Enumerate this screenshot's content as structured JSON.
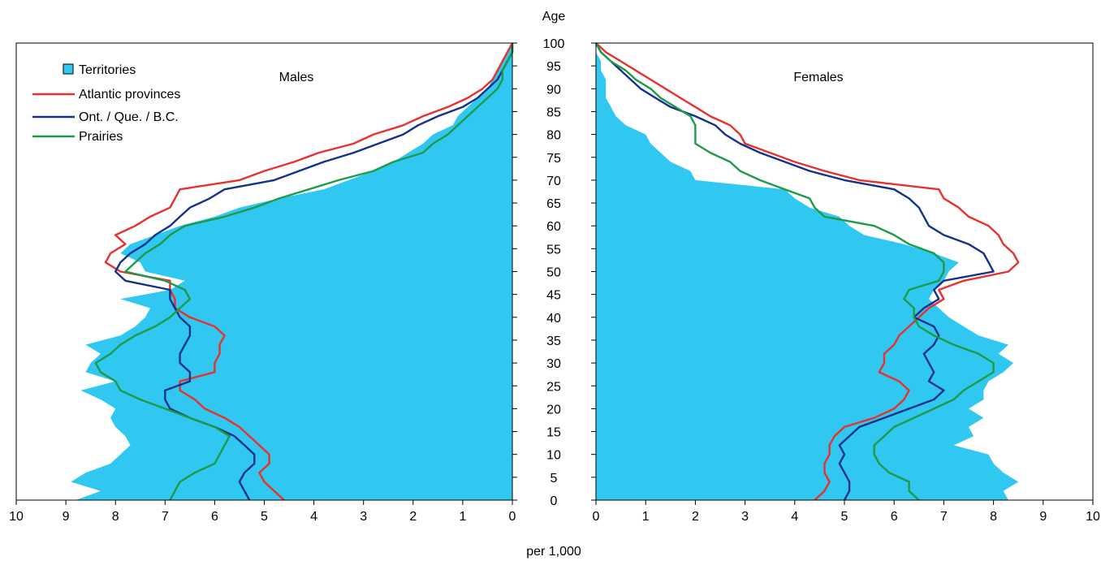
{
  "chart_data": {
    "type": "area",
    "subtype": "population-pyramid",
    "axis_title_age": "Age",
    "axis_title_x": "per 1,000",
    "panels": [
      {
        "side": "left",
        "label": "Males",
        "xlim": [
          0,
          10
        ]
      },
      {
        "side": "right",
        "label": "Females",
        "xlim": [
          0,
          10
        ]
      }
    ],
    "age_ticks": [
      0,
      5,
      10,
      15,
      20,
      25,
      30,
      35,
      40,
      45,
      50,
      55,
      60,
      65,
      70,
      75,
      80,
      85,
      90,
      95,
      100
    ],
    "x_ticks": [
      10,
      9,
      8,
      7,
      6,
      5,
      4,
      3,
      2,
      1,
      0
    ],
    "x_ticks_right": [
      0,
      1,
      2,
      3,
      4,
      5,
      6,
      7,
      8,
      9,
      10
    ],
    "ylim": [
      0,
      100
    ],
    "grid": false,
    "legend_position": "top-left",
    "ages": [
      0,
      2,
      4,
      6,
      8,
      10,
      12,
      14,
      16,
      18,
      20,
      22,
      24,
      26,
      28,
      30,
      32,
      34,
      36,
      38,
      40,
      42,
      44,
      46,
      48,
      50,
      52,
      54,
      56,
      58,
      60,
      62,
      64,
      66,
      68,
      70,
      72,
      74,
      76,
      78,
      80,
      82,
      84,
      86,
      88,
      90,
      92,
      94,
      96,
      98,
      100
    ],
    "series": [
      {
        "name": "Territories",
        "style": "area",
        "color": "#30c8f0",
        "males": [
          8.8,
          8.3,
          8.9,
          8.6,
          8.1,
          7.9,
          7.7,
          7.8,
          8.0,
          8.1,
          8.0,
          8.3,
          8.7,
          8.0,
          8.6,
          8.5,
          8.3,
          8.6,
          7.9,
          7.6,
          7.4,
          7.3,
          7.9,
          6.9,
          6.6,
          7.4,
          7.5,
          7.9,
          7.7,
          7.2,
          6.7,
          6.0,
          5.5,
          4.7,
          3.8,
          3.3,
          2.8,
          2.4,
          2.1,
          1.8,
          1.6,
          1.2,
          1.1,
          0.9,
          0.7,
          0.5,
          0.4,
          0.3,
          0.2,
          0.1,
          0.0
        ],
        "females": [
          8.3,
          8.2,
          8.5,
          8.2,
          8.0,
          7.9,
          7.2,
          7.6,
          7.5,
          7.8,
          7.5,
          7.8,
          7.8,
          7.9,
          8.2,
          8.4,
          8.1,
          8.3,
          7.7,
          7.4,
          7.1,
          6.9,
          6.7,
          6.8,
          7.0,
          7.1,
          7.3,
          6.8,
          6.2,
          5.4,
          5.1,
          4.9,
          4.3,
          4.0,
          3.8,
          2.0,
          1.9,
          1.5,
          1.3,
          1.1,
          1.0,
          0.6,
          0.4,
          0.3,
          0.2,
          0.2,
          0.2,
          0.1,
          0.1,
          0.0,
          0.0
        ]
      },
      {
        "name": "Atlantic provinces",
        "style": "line",
        "color": "#e8312d",
        "males": [
          4.6,
          4.8,
          5.0,
          5.1,
          4.9,
          4.9,
          5.1,
          5.3,
          5.5,
          5.8,
          6.2,
          6.4,
          6.7,
          6.7,
          6.0,
          6.0,
          5.9,
          5.9,
          5.8,
          6.0,
          6.5,
          6.8,
          6.8,
          6.9,
          6.9,
          7.9,
          8.2,
          8.1,
          7.8,
          8.0,
          7.6,
          7.3,
          6.9,
          6.8,
          6.7,
          5.5,
          5.0,
          4.4,
          3.9,
          3.2,
          2.8,
          2.2,
          1.8,
          1.3,
          0.9,
          0.6,
          0.4,
          0.3,
          0.2,
          0.1,
          0.0
        ],
        "females": [
          4.4,
          4.6,
          4.7,
          4.6,
          4.6,
          4.7,
          4.7,
          4.8,
          5.0,
          5.6,
          6.0,
          6.2,
          6.3,
          6.1,
          5.7,
          5.8,
          5.8,
          6.0,
          6.1,
          6.3,
          6.5,
          6.7,
          7.0,
          6.9,
          7.4,
          8.3,
          8.5,
          8.4,
          8.2,
          8.1,
          7.9,
          7.5,
          7.3,
          7.0,
          6.9,
          5.3,
          4.6,
          4.0,
          3.5,
          3.0,
          2.9,
          2.7,
          2.3,
          2.0,
          1.7,
          1.4,
          1.1,
          0.8,
          0.5,
          0.2,
          0.0
        ]
      },
      {
        "name": "Ont. / Que. / B.C.",
        "style": "line",
        "color": "#15318a",
        "males": [
          5.3,
          5.4,
          5.5,
          5.4,
          5.2,
          5.2,
          5.4,
          5.6,
          6.0,
          6.5,
          6.9,
          7.0,
          7.0,
          6.5,
          6.5,
          6.7,
          6.7,
          6.6,
          6.5,
          6.5,
          6.7,
          6.8,
          6.9,
          6.9,
          7.8,
          8.0,
          7.9,
          7.7,
          7.4,
          7.2,
          6.9,
          6.7,
          6.5,
          6.1,
          5.8,
          4.8,
          4.3,
          3.8,
          3.2,
          2.7,
          2.2,
          1.9,
          1.5,
          1.0,
          0.7,
          0.5,
          0.3,
          0.2,
          0.1,
          0.0,
          0.0
        ],
        "females": [
          5.0,
          5.1,
          5.1,
          5.0,
          4.9,
          5.0,
          4.9,
          5.1,
          5.3,
          5.8,
          6.3,
          6.8,
          7.0,
          6.7,
          6.8,
          6.7,
          6.6,
          6.8,
          6.9,
          6.8,
          6.4,
          6.6,
          6.9,
          6.8,
          7.0,
          8.0,
          7.9,
          7.8,
          7.5,
          7.0,
          6.7,
          6.6,
          6.5,
          6.3,
          6.0,
          5.0,
          4.3,
          3.8,
          3.3,
          2.9,
          2.6,
          2.4,
          2.0,
          1.5,
          1.2,
          0.9,
          0.7,
          0.5,
          0.3,
          0.1,
          0.0
        ]
      },
      {
        "name": "Prairies",
        "style": "line",
        "color": "#1e9a48",
        "males": [
          6.9,
          6.8,
          6.7,
          6.4,
          6.0,
          5.9,
          5.8,
          5.7,
          6.0,
          6.5,
          7.0,
          7.5,
          7.9,
          8.0,
          8.3,
          8.4,
          8.1,
          7.9,
          7.6,
          7.2,
          6.9,
          6.7,
          6.5,
          6.6,
          7.0,
          7.8,
          7.6,
          7.4,
          7.1,
          6.9,
          6.6,
          5.8,
          5.2,
          4.7,
          4.1,
          3.5,
          2.8,
          2.4,
          1.8,
          1.6,
          1.3,
          1.1,
          0.9,
          0.7,
          0.5,
          0.3,
          0.2,
          0.2,
          0.1,
          0.0,
          0.0
        ],
        "females": [
          6.5,
          6.3,
          6.3,
          5.9,
          5.7,
          5.6,
          5.6,
          5.8,
          6.0,
          6.4,
          6.8,
          7.2,
          7.4,
          7.7,
          8.0,
          8.0,
          7.7,
          7.2,
          6.8,
          6.5,
          6.4,
          6.4,
          6.2,
          6.3,
          6.9,
          7.0,
          7.0,
          6.8,
          6.3,
          6.0,
          5.6,
          4.6,
          4.4,
          4.3,
          3.8,
          3.3,
          2.9,
          2.7,
          2.3,
          2.0,
          2.0,
          2.0,
          1.9,
          1.6,
          1.3,
          1.1,
          0.8,
          0.6,
          0.3,
          0.1,
          0.0
        ]
      }
    ]
  }
}
